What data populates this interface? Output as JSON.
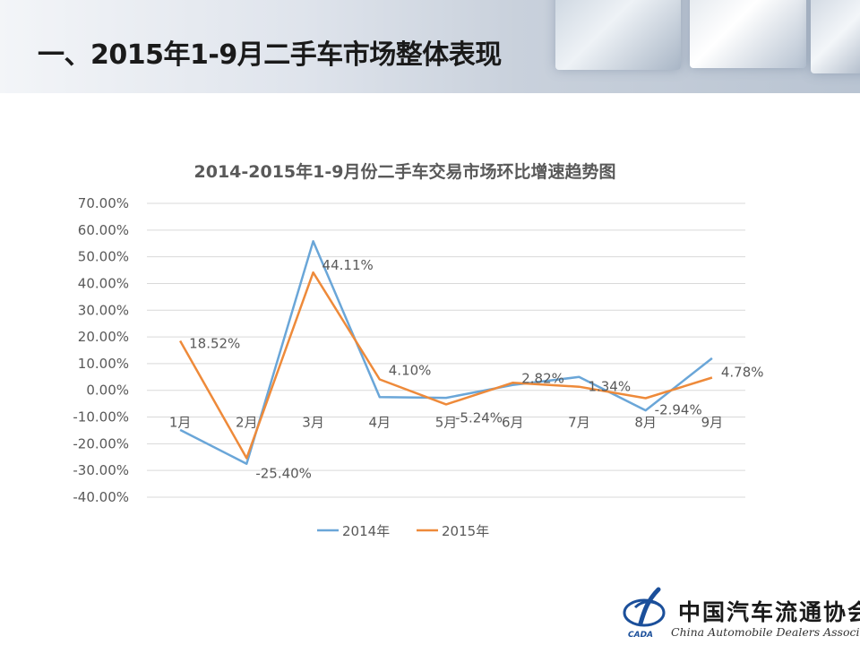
{
  "page": {
    "title": "一、2015年1-9月二手车市场整体表现"
  },
  "logo": {
    "name_cn": "中国汽车流通协会",
    "name_en": "China Automobile Dealers Association",
    "abbr": "CADA"
  },
  "colors": {
    "series_2014": "#6aa6d8",
    "series_2015": "#ee8a3a",
    "grid": "#d9d9d9",
    "text": "#595959",
    "logo_blue": "#1b4f9a"
  },
  "chart_data": {
    "type": "line",
    "title": "2014-2015年1-9月份二手车交易市场环比增速趋势图",
    "categories": [
      "1月",
      "2月",
      "3月",
      "4月",
      "5月",
      "6月",
      "7月",
      "8月",
      "9月"
    ],
    "y_ticks": [
      "70.00%",
      "60.00%",
      "50.00%",
      "40.00%",
      "30.00%",
      "20.00%",
      "10.00%",
      "0.00%",
      "-10.00%",
      "-20.00%",
      "-30.00%",
      "-40.00%"
    ],
    "ylim": [
      -40,
      70
    ],
    "y_unit": "%",
    "grid": true,
    "legend_position": "bottom",
    "series": [
      {
        "name": "2014年",
        "values": [
          -14.8,
          -27.5,
          55.8,
          -2.5,
          -2.8,
          2.0,
          5.0,
          -7.5,
          12.0
        ]
      },
      {
        "name": "2015年",
        "values": [
          18.52,
          -25.4,
          44.11,
          4.1,
          -5.24,
          2.82,
          1.34,
          -2.94,
          4.78
        ],
        "data_labels": [
          "18.52%",
          "-25.40%",
          "44.11%",
          "4.10%",
          "-5.24%",
          "2.82%",
          "1.34%",
          "-2.94%",
          "4.78%"
        ]
      }
    ]
  }
}
